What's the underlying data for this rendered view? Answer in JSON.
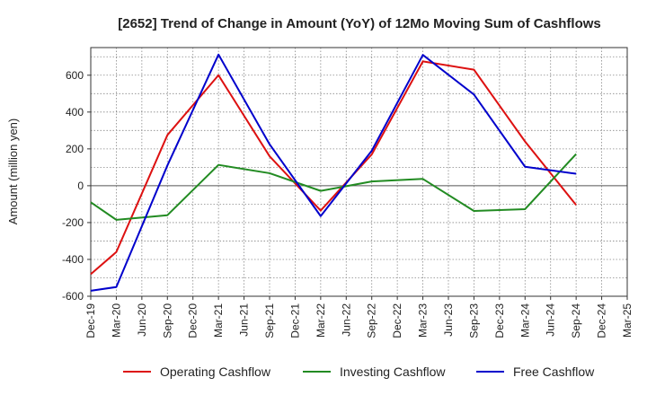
{
  "chart_data": {
    "type": "line",
    "title": "[2652]  Trend of Change in Amount (YoY) of 12Mo Moving Sum of Cashflows",
    "xlabel": "",
    "ylabel": "Amount (million yen)",
    "ylim": [
      -600,
      750
    ],
    "yticks": [
      -600,
      -400,
      -200,
      0,
      200,
      400,
      600
    ],
    "categories": [
      "Dec-19",
      "Mar-20",
      "Jun-20",
      "Sep-20",
      "Dec-20",
      "Mar-21",
      "Jun-21",
      "Sep-21",
      "Dec-21",
      "Mar-22",
      "Jun-22",
      "Sep-22",
      "Dec-22",
      "Mar-23",
      "Jun-23",
      "Sep-23",
      "Dec-23",
      "Mar-24",
      "Jun-24",
      "Sep-24",
      "Dec-24",
      "Mar-25"
    ],
    "series": [
      {
        "name": "Operating Cashflow",
        "color": "#dd1111",
        "values": [
          -480,
          -360,
          null,
          275,
          null,
          600,
          null,
          160,
          null,
          -135,
          null,
          170,
          null,
          675,
          null,
          630,
          null,
          240,
          null,
          -105,
          null,
          null
        ]
      },
      {
        "name": "Investing Cashflow",
        "color": "#228B22",
        "values": [
          -90,
          -185,
          null,
          -160,
          null,
          113,
          null,
          68,
          null,
          -28,
          null,
          23,
          null,
          37,
          null,
          -137,
          null,
          -127,
          null,
          172,
          null,
          null
        ]
      },
      {
        "name": "Free Cashflow",
        "color": "#0000cc",
        "values": [
          -570,
          -550,
          null,
          110,
          null,
          712,
          null,
          225,
          null,
          -165,
          null,
          190,
          null,
          710,
          null,
          495,
          null,
          103,
          null,
          65,
          null,
          null
        ]
      }
    ],
    "grid": true,
    "legend": "bottom"
  }
}
